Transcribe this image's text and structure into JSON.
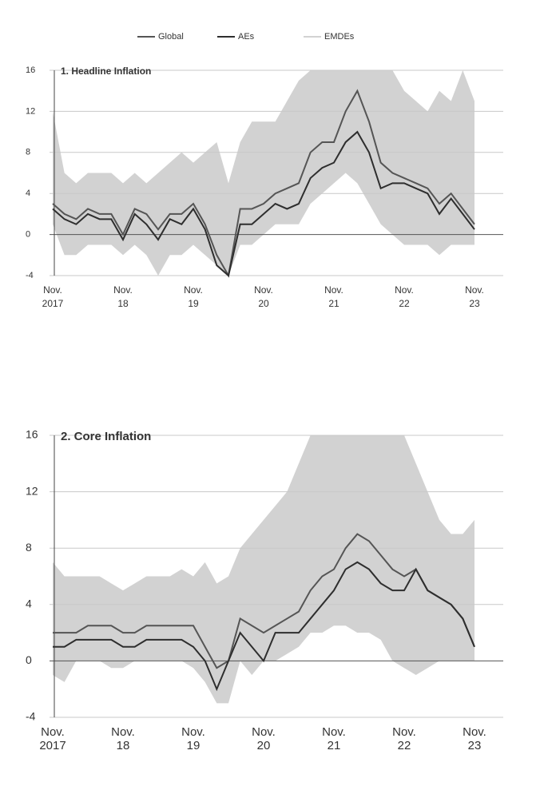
{
  "chart_data": [
    {
      "type": "band-line",
      "title": "1. Headline Inflation",
      "categories": [
        "Nov. 2017",
        null,
        null,
        null,
        null,
        null,
        "Nov. 18",
        null,
        null,
        null,
        null,
        null,
        "Nov. 19",
        null,
        null,
        null,
        null,
        null,
        "Nov. 20",
        null,
        null,
        null,
        null,
        null,
        "Nov. 21",
        null,
        null,
        null,
        null,
        null,
        "Nov. 22",
        null,
        null,
        null,
        null,
        null,
        "Nov. 23"
      ],
      "ylim": [
        -4,
        16
      ],
      "yticks": [
        16,
        12,
        8,
        4,
        0,
        -4
      ],
      "series": [
        {
          "name": "Global",
          "color": "#555555",
          "values": [
            3,
            2,
            1.5,
            2.5,
            2,
            2,
            0,
            2.5,
            2,
            0.5,
            2,
            2,
            3,
            1,
            -2,
            -4,
            2.5,
            2.5,
            3,
            4,
            4.5,
            5,
            8,
            9,
            9,
            12,
            14,
            11,
            7,
            6,
            5.5,
            5,
            4.5,
            3,
            4,
            2.5,
            1
          ]
        },
        {
          "name": "AEs",
          "color": "#2e2e2e",
          "values": [
            2.5,
            1.5,
            1,
            2,
            1.5,
            1.5,
            -0.5,
            2,
            1,
            -0.5,
            1.5,
            1,
            2.5,
            0.5,
            -3,
            -4,
            1,
            1,
            2,
            3,
            2.5,
            3,
            5.5,
            6.5,
            7,
            9,
            10,
            8,
            4.5,
            5,
            5,
            4.5,
            4,
            2,
            3.5,
            2,
            0.5
          ]
        },
        {
          "name": "EMDEs",
          "color": "#d2d2d2",
          "high": [
            12,
            6,
            5,
            6,
            6,
            6,
            5,
            6,
            5,
            6,
            7,
            8,
            7,
            8,
            9,
            5,
            9,
            11,
            11,
            11,
            13,
            15,
            16,
            16,
            16,
            16,
            16,
            16,
            16,
            16,
            14,
            13,
            12,
            14,
            13,
            16,
            13
          ],
          "low": [
            1,
            -2,
            -2,
            -1,
            -1,
            -1,
            -2,
            -1,
            -2,
            -4,
            -2,
            -2,
            -1,
            -2,
            -3,
            -4,
            -1,
            -1,
            0,
            1,
            1,
            1,
            3,
            4,
            5,
            6,
            5,
            3,
            1,
            0,
            -1,
            -1,
            -1,
            -2,
            -1,
            -1,
            -1
          ]
        }
      ]
    },
    {
      "type": "band-line",
      "title": "2. Core Inflation",
      "categories": [
        "Nov. 2017",
        null,
        null,
        null,
        null,
        null,
        "Nov. 18",
        null,
        null,
        null,
        null,
        null,
        "Nov. 19",
        null,
        null,
        null,
        null,
        null,
        "Nov. 20",
        null,
        null,
        null,
        null,
        null,
        "Nov. 21",
        null,
        null,
        null,
        null,
        null,
        "Nov. 22",
        null,
        null,
        null,
        null,
        null,
        "Nov. 23"
      ],
      "ylim": [
        -4,
        16
      ],
      "yticks": [
        16,
        12,
        8,
        4,
        0,
        -4
      ],
      "series": [
        {
          "name": "Global",
          "color": "#555555",
          "values": [
            2,
            2,
            2,
            2.5,
            2.5,
            2.5,
            2,
            2,
            2.5,
            2.5,
            2.5,
            2.5,
            2.5,
            1,
            -0.5,
            0,
            3,
            2.5,
            2,
            2.5,
            3,
            3.5,
            5,
            6,
            6.5,
            8,
            9,
            8.5,
            7.5,
            6.5,
            6,
            6.5,
            5,
            4.5,
            4,
            3,
            1
          ]
        },
        {
          "name": "AEs",
          "color": "#2e2e2e",
          "values": [
            1,
            1,
            1.5,
            1.5,
            1.5,
            1.5,
            1,
            1,
            1.5,
            1.5,
            1.5,
            1.5,
            1,
            0,
            -2,
            0,
            2,
            1,
            0,
            2,
            2,
            2,
            3,
            4,
            5,
            6.5,
            7,
            6.5,
            5.5,
            5,
            5,
            6.5,
            5,
            4.5,
            4,
            3,
            1
          ]
        },
        {
          "name": "EMDEs",
          "color": "#d2d2d2",
          "high": [
            7,
            6,
            6,
            6,
            6,
            5.5,
            5,
            5.5,
            6,
            6,
            6,
            6.5,
            6,
            7,
            5.5,
            6,
            8,
            9,
            10,
            11,
            12,
            14,
            16,
            16,
            16,
            16,
            16,
            16,
            16,
            16,
            16,
            14,
            12,
            10,
            9,
            9,
            10
          ],
          "low": [
            -1,
            -1.5,
            0,
            0,
            0,
            -0.5,
            -0.5,
            0,
            0,
            0,
            0,
            0,
            -0.5,
            -1.5,
            -3,
            -3,
            0,
            -1,
            0,
            0,
            0.5,
            1,
            2,
            2,
            2.5,
            2.5,
            2,
            2,
            1.5,
            0,
            -0.5,
            -1,
            -0.5,
            0,
            0,
            0,
            0
          ]
        }
      ]
    }
  ]
}
